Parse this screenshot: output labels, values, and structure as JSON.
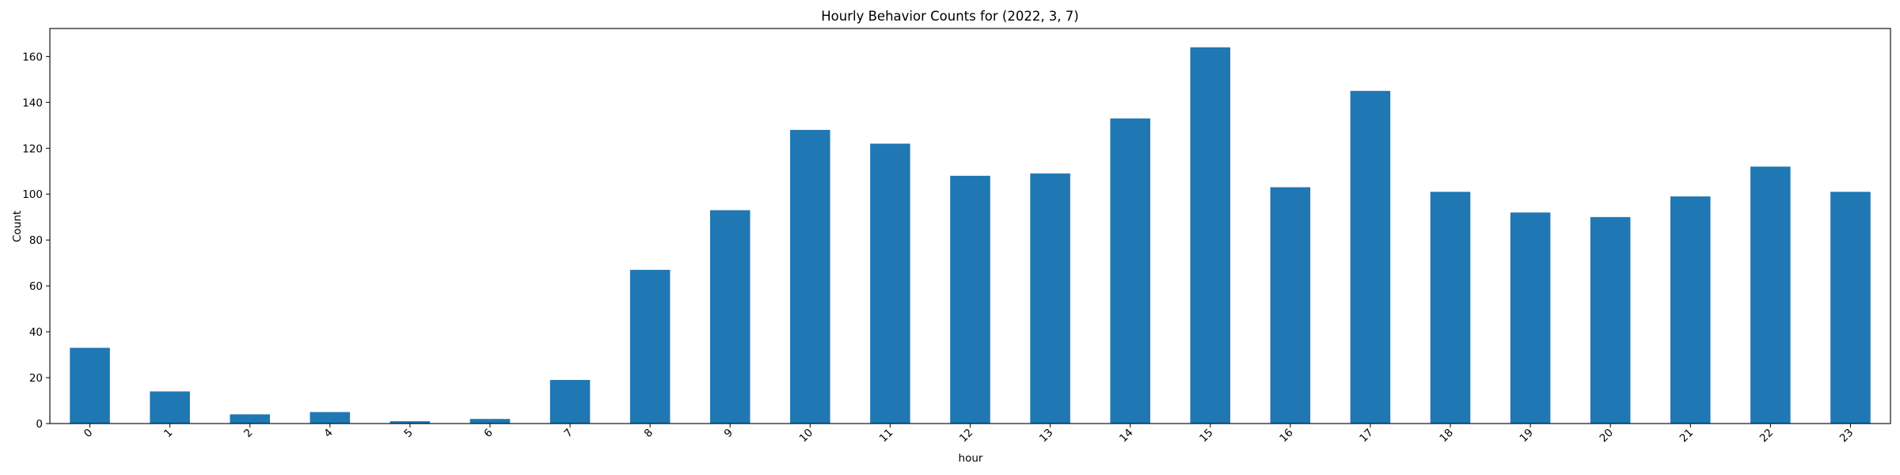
{
  "chart_data": {
    "type": "bar",
    "title": "Hourly Behavior Counts for (2022, 3, 7)",
    "xlabel": "hour",
    "ylabel": "Count",
    "categories": [
      "0",
      "1",
      "2",
      "4",
      "5",
      "6",
      "7",
      "8",
      "9",
      "10",
      "11",
      "12",
      "13",
      "14",
      "15",
      "16",
      "17",
      "18",
      "19",
      "20",
      "21",
      "22",
      "23"
    ],
    "values": [
      33,
      14,
      4,
      5,
      1,
      2,
      19,
      67,
      93,
      128,
      122,
      108,
      109,
      133,
      164,
      103,
      145,
      101,
      92,
      90,
      99,
      112,
      101
    ],
    "ylim": [
      0,
      172.2
    ],
    "yticks": [
      0,
      20,
      40,
      60,
      80,
      100,
      120,
      140,
      160
    ],
    "grid": false,
    "legend": "none",
    "bar_color": "#1f77b4"
  }
}
